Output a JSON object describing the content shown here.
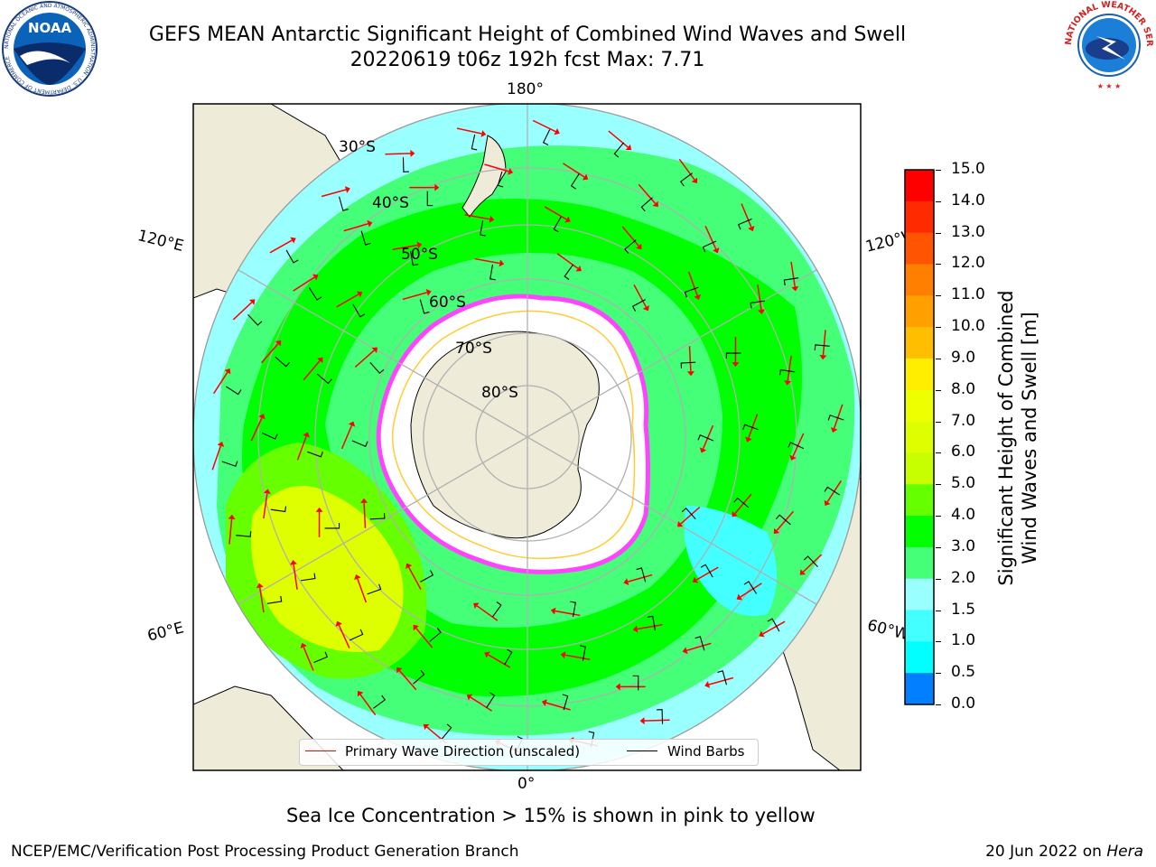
{
  "title": {
    "line1": "GEFS MEAN Antarctic Significant Height of Combined Wind Waves and Swell",
    "line2": "20220619 t06z 192h fcst   Max: 7.71"
  },
  "logos": {
    "left": {
      "name": "noaa-logo",
      "text": "NOAA",
      "ring_text": "NATIONAL OCEANIC AND ATMOSPHERIC ADMINISTRATION · U.S. DEPARTMENT OF COMMERCE"
    },
    "right": {
      "name": "nws-logo",
      "ring_text": "NATIONAL WEATHER SERVICE"
    }
  },
  "map": {
    "projection": "south-polar-stereographic",
    "longitude_labels": {
      "top": "180°",
      "left_upper": "120°E",
      "right_upper": "120°W",
      "left_lower": "60°E",
      "right_lower": "60°W",
      "bottom": "0°"
    },
    "latitude_labels": [
      "30°S",
      "40°S",
      "50°S",
      "60°S",
      "70°S",
      "80°S"
    ],
    "colors": {
      "land": "#eeebd9",
      "sea_ice": "#ffffff",
      "ice_edge": "#ff44ff",
      "wave_arrow": "#ff0000",
      "wind_barb": "#000000",
      "gridline": "#b0b0b0"
    }
  },
  "legend": {
    "items": [
      {
        "label": "Primary Wave Direction (unscaled)",
        "color": "#ff0000"
      },
      {
        "label": "Wind Barbs",
        "color": "#000000"
      }
    ]
  },
  "colorbar": {
    "label_line1": "Significant Height of Combined",
    "label_line2": "Wind Waves and Swell [m]",
    "ticks": [
      "15.0",
      "14.0",
      "13.0",
      "12.0",
      "11.0",
      "10.0",
      "9.0",
      "8.0",
      "7.0",
      "6.0",
      "5.0",
      "4.0",
      "3.0",
      "2.0",
      "1.5",
      "1.0",
      "0.5",
      "0.0"
    ],
    "colors": [
      "#ff0000",
      "#ff2a00",
      "#ff5500",
      "#ff7f00",
      "#ff9f00",
      "#ffbf00",
      "#ffee00",
      "#eeff00",
      "#ddff00",
      "#c8ff00",
      "#66ff00",
      "#00ff00",
      "#44ff77",
      "#99ffff",
      "#44ffff",
      "#00ffff",
      "#0080ff",
      "#0000ff"
    ],
    "note": "bands listed from top (15.0) down to bottom (0.0)"
  },
  "footnote": "Sea Ice Concentration > 15% is shown in pink to yellow",
  "credit": "NCEP/EMC/Verification Post Processing Product Generation Branch",
  "date": {
    "text": "20 Jun 2022 on ",
    "host": "Hera"
  }
}
